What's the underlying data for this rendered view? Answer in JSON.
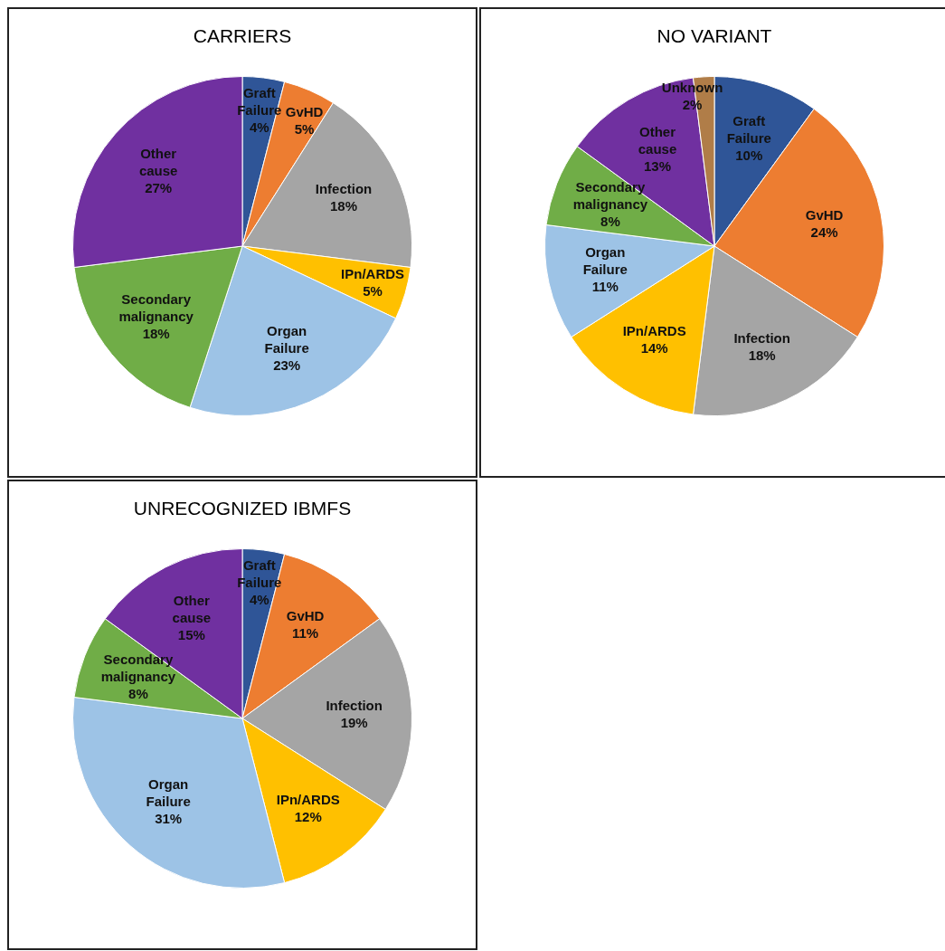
{
  "chart_data": [
    {
      "type": "pie",
      "title": "CARRIERS",
      "categories": [
        "Graft Failure",
        "GvHD",
        "Infection",
        "IPn/ARDS",
        "Organ Failure",
        "Secondary malignancy",
        "Other cause"
      ],
      "values": [
        4,
        5,
        18,
        5,
        23,
        18,
        27
      ],
      "value_labels": [
        "4%",
        "5%",
        "18%",
        "5%",
        "23%",
        "18%",
        "27%"
      ],
      "colors": [
        "#2f5597",
        "#ed7d31",
        "#a5a5a5",
        "#ffc000",
        "#9dc3e6",
        "#70ad47",
        "#7030a0"
      ],
      "legend": false
    },
    {
      "type": "pie",
      "title": "NO VARIANT",
      "categories": [
        "Graft Failure",
        "GvHD",
        "Infection",
        "IPn/ARDS",
        "Organ Failure",
        "Secondary malignancy",
        "Other cause",
        "Unknown"
      ],
      "values": [
        10,
        24,
        18,
        14,
        11,
        8,
        13,
        2
      ],
      "value_labels": [
        "10%",
        "24%",
        "18%",
        "14%",
        "11%",
        "8%",
        "13%",
        "2%"
      ],
      "colors": [
        "#2f5597",
        "#ed7d31",
        "#a5a5a5",
        "#ffc000",
        "#9dc3e6",
        "#70ad47",
        "#7030a0",
        "#b07d48"
      ],
      "legend": false
    },
    {
      "type": "pie",
      "title": "UNRECOGNIZED IBMFS",
      "categories": [
        "Graft Failure",
        "GvHD",
        "Infection",
        "IPn/ARDS",
        "Organ Failure",
        "Secondary malignancy",
        "Other cause"
      ],
      "values": [
        4,
        11,
        19,
        12,
        31,
        8,
        15
      ],
      "value_labels": [
        "4%",
        "11%",
        "19%",
        "12%",
        "31%",
        "8%",
        "15%"
      ],
      "colors": [
        "#2f5597",
        "#ed7d31",
        "#a5a5a5",
        "#ffc000",
        "#9dc3e6",
        "#70ad47",
        "#7030a0"
      ],
      "legend": false
    }
  ]
}
